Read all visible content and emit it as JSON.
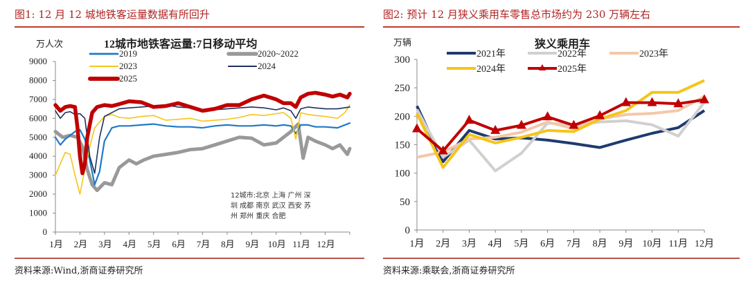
{
  "left": {
    "figure_title": "图1:   12 月 12 城地铁客运量数据有所回升",
    "source": "资料来源:Wind,浙商证券研究所",
    "note_lines": [
      "12城市:北京 上海 广州 深",
      "圳 成都 南京 武汉 西安 苏",
      "州 郑州 重庆 合肥"
    ]
  },
  "right": {
    "figure_title": "图2:   预计 12 月狭义乘用车零售总市场约为 230 万辆左右",
    "source": "资料来源:乘联会,浙商证券研究所"
  },
  "chart_data": [
    {
      "type": "line",
      "title": "12城市地铁客运量:7日移动平均",
      "ylabel": "万人次",
      "xlabel": "",
      "ylim": [
        0,
        9000
      ],
      "yticks": [
        "0",
        "1000",
        "2000",
        "3000",
        "4000",
        "5000",
        "6000",
        "7000",
        "8000",
        "9000"
      ],
      "categories": [
        "1月",
        "2月",
        "3月",
        "4月",
        "5月",
        "6月",
        "7月",
        "8月",
        "9月",
        "10月",
        "11月",
        "12月"
      ],
      "legend_position": "top",
      "x_unit": "month (fractional, 0 = start of 1月, 12 = end of year)",
      "series": [
        {
          "name": "2019",
          "color": "#1f78c8",
          "x": [
            0,
            0.2,
            0.4,
            0.6,
            0.8,
            1.0,
            1.2,
            1.4,
            1.6,
            1.8,
            2.0,
            2.3,
            2.6,
            3,
            3.5,
            4,
            4.5,
            5,
            5.5,
            6,
            6.5,
            7,
            7.5,
            8,
            8.5,
            9,
            9.3,
            9.6,
            9.8,
            10,
            10.3,
            10.6,
            11,
            11.5,
            12
          ],
          "values": [
            5000,
            4600,
            4900,
            5100,
            5300,
            5400,
            4900,
            3800,
            2500,
            3200,
            4800,
            5500,
            5600,
            5600,
            5650,
            5700,
            5600,
            5550,
            5550,
            5500,
            5600,
            5650,
            5600,
            5600,
            5650,
            5600,
            5650,
            5600,
            5200,
            5650,
            5650,
            5550,
            5550,
            5500,
            5750
          ]
        },
        {
          "name": "2020~2022",
          "color": "#999999",
          "x": [
            0,
            0.3,
            0.6,
            0.9,
            1.1,
            1.3,
            1.5,
            1.7,
            2.0,
            2.3,
            2.6,
            3,
            3.3,
            3.6,
            4,
            4.5,
            5,
            5.5,
            6,
            6.5,
            7,
            7.5,
            8,
            8.5,
            9,
            9.3,
            9.6,
            9.9,
            10.1,
            10.3,
            10.6,
            11,
            11.3,
            11.6,
            11.9,
            12
          ],
          "values": [
            5300,
            5000,
            5100,
            5000,
            4500,
            3300,
            2500,
            2200,
            2600,
            2500,
            3400,
            3800,
            3600,
            3800,
            4000,
            4100,
            4200,
            4350,
            4400,
            4600,
            4800,
            5000,
            4950,
            4600,
            4700,
            5000,
            5300,
            5700,
            3900,
            5000,
            4800,
            4600,
            4400,
            4600,
            4100,
            4400
          ]
        },
        {
          "name": "2023",
          "color": "#f5c518",
          "x": [
            0,
            0.2,
            0.4,
            0.6,
            0.8,
            1.0,
            1.2,
            1.4,
            1.6,
            1.8,
            2.0,
            2.3,
            2.6,
            3,
            3.5,
            4,
            4.5,
            5,
            5.5,
            6,
            6.5,
            7,
            7.5,
            8,
            8.5,
            9,
            9.3,
            9.6,
            9.8,
            10,
            10.3,
            10.6,
            11,
            11.5,
            11.8,
            12
          ],
          "values": [
            3000,
            3600,
            4200,
            4100,
            3000,
            2000,
            3300,
            4500,
            5500,
            5800,
            6100,
            6200,
            6050,
            6000,
            6100,
            6150,
            5900,
            5950,
            6000,
            5850,
            5900,
            5950,
            6050,
            6200,
            6150,
            6250,
            6300,
            6000,
            4900,
            6300,
            6200,
            6150,
            6100,
            6000,
            6300,
            6700
          ]
        },
        {
          "name": "2024",
          "color": "#1c2f5e",
          "x": [
            0,
            0.2,
            0.4,
            0.6,
            0.8,
            1.0,
            1.2,
            1.4,
            1.6,
            1.8,
            2.0,
            2.3,
            2.6,
            3,
            3.5,
            4,
            4.5,
            5,
            5.5,
            6,
            6.5,
            7,
            7.5,
            8,
            8.5,
            9,
            9.3,
            9.6,
            9.8,
            10,
            10.3,
            10.6,
            11,
            11.5,
            12
          ],
          "values": [
            6400,
            6000,
            6300,
            6350,
            6200,
            6250,
            6000,
            4000,
            3100,
            5000,
            6100,
            6300,
            6500,
            6550,
            6600,
            6650,
            6700,
            6600,
            6550,
            6400,
            6450,
            6500,
            6550,
            6600,
            6550,
            6450,
            6550,
            6400,
            6000,
            6500,
            6600,
            6550,
            6500,
            6500,
            6600
          ]
        },
        {
          "name": "2025",
          "color": "#c00000",
          "x": [
            0,
            0.2,
            0.4,
            0.6,
            0.8,
            0.9,
            1.0,
            1.1,
            1.2,
            1.3,
            1.5,
            1.7,
            2.0,
            2.3,
            2.6,
            3,
            3.5,
            4,
            4.5,
            5,
            5.5,
            6,
            6.5,
            7,
            7.5,
            8,
            8.5,
            9,
            9.3,
            9.6,
            9.8,
            10,
            10.3,
            10.6,
            11,
            11.3,
            11.6,
            11.9,
            12
          ],
          "values": [
            6700,
            6400,
            6600,
            6650,
            6600,
            5500,
            4000,
            3100,
            3600,
            5000,
            6300,
            6600,
            6700,
            6650,
            6750,
            6900,
            6850,
            6600,
            6650,
            6800,
            6600,
            6400,
            6500,
            6700,
            6700,
            7000,
            7200,
            7000,
            6800,
            6800,
            6600,
            7100,
            7300,
            7350,
            7250,
            7150,
            7250,
            7100,
            7300
          ]
        }
      ],
      "annotation": "12城市:北京 上海 广州 深圳 成都 南京 武汉 西安 苏州 郑州 重庆 合肥"
    },
    {
      "type": "line",
      "title": "狭义乘用车",
      "ylabel": "万辆",
      "xlabel": "",
      "ylim": [
        0,
        300
      ],
      "yticks": [
        "0",
        "50",
        "100",
        "150",
        "200",
        "250",
        "300"
      ],
      "categories": [
        "1月",
        "2月",
        "3月",
        "4月",
        "5月",
        "6月",
        "7月",
        "8月",
        "9月",
        "10月",
        "11月",
        "12月"
      ],
      "legend_position": "top",
      "series": [
        {
          "name": "2021年",
          "color": "#1f3a6e",
          "marker": "none",
          "values": [
            218,
            120,
            175,
            160,
            162,
            158,
            152,
            145,
            158,
            170,
            180,
            210
          ]
        },
        {
          "name": "2022年",
          "color": "#d0d0d0",
          "marker": "none",
          "values": [
            212,
            128,
            158,
            104,
            135,
            188,
            185,
            190,
            192,
            185,
            165,
            225
          ]
        },
        {
          "name": "2023年",
          "color": "#f4c7a8",
          "marker": "none",
          "values": [
            128,
            137,
            160,
            163,
            172,
            190,
            178,
            195,
            203,
            205,
            210,
            235
          ]
        },
        {
          "name": "2024年",
          "color": "#f5c518",
          "marker": "none",
          "values": [
            205,
            110,
            168,
            153,
            163,
            175,
            173,
            195,
            210,
            242,
            242,
            263
          ]
        },
        {
          "name": "2025年",
          "color": "#c00000",
          "marker": "triangle",
          "values": [
            178,
            139,
            193,
            175,
            184,
            199,
            184,
            201,
            224,
            224,
            222,
            229
          ]
        }
      ]
    }
  ]
}
